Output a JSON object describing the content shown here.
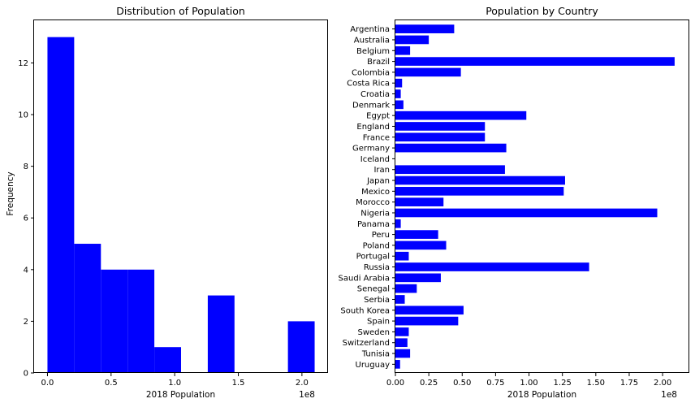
{
  "chart_data": [
    {
      "type": "bar",
      "title": "Distribution of Population",
      "xlabel": "2018 Population",
      "ylabel": "Frequency",
      "x_scale_label": "1e8",
      "bar_color": "#0000ff",
      "xlim": [
        -0.105,
        2.205
      ],
      "ylim": [
        0,
        13.65
      ],
      "bins": [
        {
          "x0": 0.0,
          "x1": 0.21,
          "count": 13
        },
        {
          "x0": 0.21,
          "x1": 0.42,
          "count": 5
        },
        {
          "x0": 0.42,
          "x1": 0.63,
          "count": 4
        },
        {
          "x0": 0.63,
          "x1": 0.84,
          "count": 4
        },
        {
          "x0": 0.84,
          "x1": 1.05,
          "count": 1
        },
        {
          "x0": 1.05,
          "x1": 1.26,
          "count": 0
        },
        {
          "x0": 1.26,
          "x1": 1.47,
          "count": 3
        },
        {
          "x0": 1.47,
          "x1": 1.68,
          "count": 0
        },
        {
          "x0": 1.68,
          "x1": 1.89,
          "count": 0
        },
        {
          "x0": 1.89,
          "x1": 2.1,
          "count": 2
        }
      ],
      "x_ticks": [
        {
          "value": 0.0,
          "label": "0.0"
        },
        {
          "value": 0.5,
          "label": "0.5"
        },
        {
          "value": 1.0,
          "label": "1.0"
        },
        {
          "value": 1.5,
          "label": "1.5"
        },
        {
          "value": 2.0,
          "label": "2.0"
        }
      ],
      "y_ticks": [
        {
          "value": 0,
          "label": "0"
        },
        {
          "value": 2,
          "label": "2"
        },
        {
          "value": 4,
          "label": "4"
        },
        {
          "value": 6,
          "label": "6"
        },
        {
          "value": 8,
          "label": "8"
        },
        {
          "value": 10,
          "label": "10"
        },
        {
          "value": 12,
          "label": "12"
        }
      ]
    },
    {
      "type": "bar",
      "orientation": "horizontal",
      "title": "Population by Country",
      "xlabel": "2018 Population",
      "x_scale_label": "1e8",
      "bar_color": "#0000ff",
      "xlim": [
        0,
        2.2
      ],
      "categories": [
        "Argentina",
        "Australia",
        "Belgium",
        "Brazil",
        "Colombia",
        "Costa Rica",
        "Croatia",
        "Denmark",
        "Egypt",
        "England",
        "France",
        "Germany",
        "Iceland",
        "Iran",
        "Japan",
        "Mexico",
        "Morocco",
        "Nigeria",
        "Panama",
        "Peru",
        "Poland",
        "Portugal",
        "Russia",
        "Saudi Arabia",
        "Senegal",
        "Serbia",
        "South Korea",
        "Spain",
        "Sweden",
        "Switzerland",
        "Tunisia",
        "Uruguay"
      ],
      "values": [
        0.44,
        0.25,
        0.11,
        2.09,
        0.49,
        0.05,
        0.04,
        0.06,
        0.98,
        0.67,
        0.67,
        0.83,
        0.0,
        0.82,
        1.27,
        1.26,
        0.36,
        1.96,
        0.04,
        0.32,
        0.38,
        0.1,
        1.45,
        0.34,
        0.16,
        0.07,
        0.51,
        0.47,
        0.1,
        0.09,
        0.11,
        0.035
      ],
      "x_ticks": [
        {
          "value": 0.0,
          "label": "0.00"
        },
        {
          "value": 0.25,
          "label": "0.25"
        },
        {
          "value": 0.5,
          "label": "0.50"
        },
        {
          "value": 0.75,
          "label": "0.75"
        },
        {
          "value": 1.0,
          "label": "1.00"
        },
        {
          "value": 1.25,
          "label": "1.25"
        },
        {
          "value": 1.5,
          "label": "1.50"
        },
        {
          "value": 1.75,
          "label": "1.75"
        },
        {
          "value": 2.0,
          "label": "2.00"
        }
      ]
    }
  ]
}
